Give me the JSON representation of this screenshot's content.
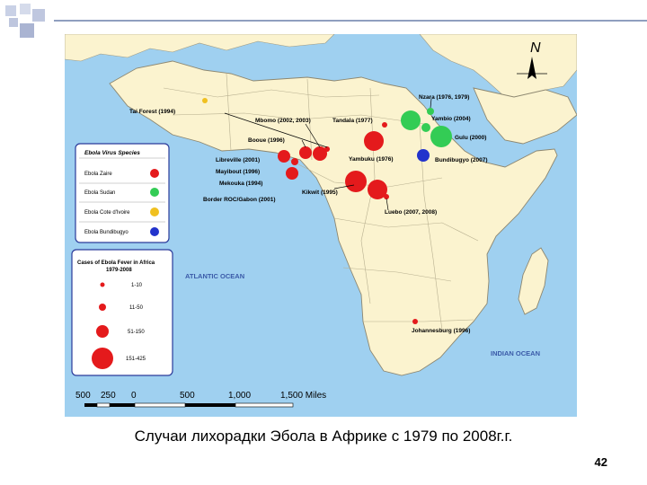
{
  "map": {
    "ocean_color": "#9fd0f0",
    "land_color": "#fbf3cf",
    "compass_letter": "N",
    "ocean_labels": {
      "atlantic": "ATLANTIC OCEAN",
      "indian": "INDIAN OCEAN"
    },
    "outbreaks": [
      {
        "label": "Tai Forest (1994)",
        "species": "zaire_yellow"
      },
      {
        "label": "Nzara (1976, 1979)",
        "species": "sudan"
      },
      {
        "label": "Mbomo (2002, 2003)",
        "species": "zaire"
      },
      {
        "label": "Tandala (1977)",
        "species": "zaire"
      },
      {
        "label": "Yambio (2004)",
        "species": "sudan"
      },
      {
        "label": "Booue (1996)",
        "species": "zaire"
      },
      {
        "label": "Gulu (2000)",
        "species": "sudan"
      },
      {
        "label": "Libreville (2001)",
        "species": "zaire"
      },
      {
        "label": "Yambuku (1976)",
        "species": "zaire"
      },
      {
        "label": "Bundibugyo (2007)",
        "species": "bundibugyo"
      },
      {
        "label": "Mayibout (1996)",
        "species": "zaire"
      },
      {
        "label": "Mekouka (1994)",
        "species": "zaire"
      },
      {
        "label": "Kikwit (1995)",
        "species": "zaire"
      },
      {
        "label": "Border ROC/Gabon (2001)",
        "species": "zaire"
      },
      {
        "label": "Luebo (2007, 2008)",
        "species": "zaire"
      },
      {
        "label": "Johannesburg (1996)",
        "species": "zaire"
      }
    ],
    "species_legend": {
      "title": "Ebola Virus Species",
      "items": [
        {
          "label": "Ebola Zaire",
          "color": "#e41a1c"
        },
        {
          "label": "Ebola Sudan",
          "color": "#33cc55"
        },
        {
          "label": "Ebola Cote d'Ivoire",
          "color": "#f0c020"
        },
        {
          "label": "Ebola Bundibugyo",
          "color": "#2233cc"
        }
      ]
    },
    "cases_legend": {
      "title_line1": "Cases of Ebola Fever in Africa",
      "title_line2": "1979-2008",
      "items": [
        "1-10",
        "11-50",
        "51-150",
        "151-425"
      ]
    },
    "scale": {
      "labels": [
        "500",
        "250",
        "0",
        "500",
        "1,000",
        "1,500 Miles"
      ]
    }
  },
  "caption": "Случаи лихорадки Эбола в Африке с 1979 по 2008г.г.",
  "page_number": "42"
}
